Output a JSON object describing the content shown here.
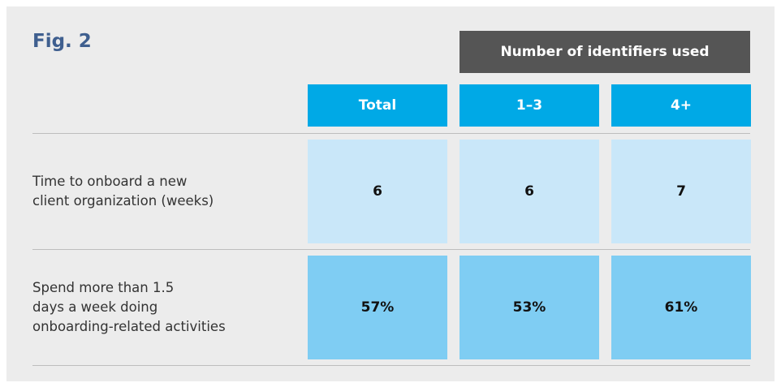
{
  "header": {
    "title": "Fig. 2",
    "group_label": "Number of identifiers used"
  },
  "table": {
    "columns": [
      "Total",
      "1–3",
      "4+"
    ],
    "rows": [
      {
        "label_lines": [
          "Time to onboard a new",
          "client organization (weeks)"
        ],
        "cells": [
          "6",
          "6",
          "7"
        ]
      },
      {
        "label_lines": [
          "Spend more than 1.5",
          "days a week doing",
          "onboarding-related activities"
        ],
        "cells": [
          "57%",
          "53%",
          "61%"
        ]
      }
    ]
  }
}
